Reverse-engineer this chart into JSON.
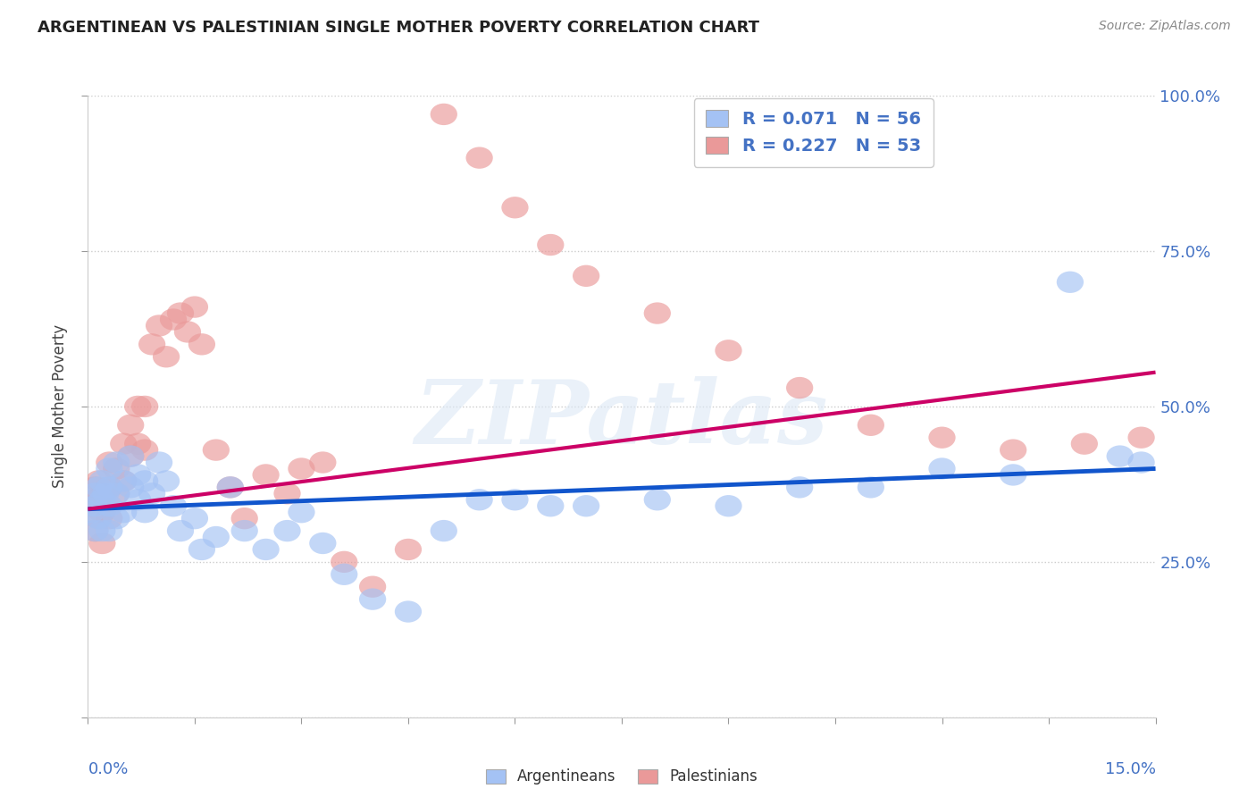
{
  "title": "ARGENTINEAN VS PALESTINIAN SINGLE MOTHER POVERTY CORRELATION CHART",
  "source": "Source: ZipAtlas.com",
  "ylabel": "Single Mother Poverty",
  "xlim": [
    0.0,
    0.15
  ],
  "ylim": [
    0.0,
    1.0
  ],
  "ytick_vals": [
    0.0,
    0.25,
    0.5,
    0.75,
    1.0
  ],
  "ytick_labels": [
    "",
    "25.0%",
    "50.0%",
    "75.0%",
    "100.0%"
  ],
  "legend_blue_label": "R = 0.071   N = 56",
  "legend_pink_label": "R = 0.227   N = 53",
  "legend_bottom_blue": "Argentineans",
  "legend_bottom_pink": "Palestinians",
  "blue_color": "#a4c2f4",
  "pink_color": "#ea9999",
  "blue_fill": "#a4c2f4",
  "pink_fill": "#ea9999",
  "blue_line_color": "#1155cc",
  "pink_line_color": "#cc0066",
  "watermark": "ZIPatlas",
  "blue_line_x": [
    0.0,
    0.15
  ],
  "blue_line_y": [
    0.335,
    0.4
  ],
  "pink_line_x": [
    0.0,
    0.15
  ],
  "pink_line_y": [
    0.335,
    0.555
  ],
  "arg_x": [
    0.0005,
    0.001,
    0.001,
    0.001,
    0.0015,
    0.0015,
    0.002,
    0.002,
    0.002,
    0.0025,
    0.003,
    0.003,
    0.003,
    0.003,
    0.004,
    0.004,
    0.004,
    0.005,
    0.005,
    0.006,
    0.006,
    0.007,
    0.007,
    0.008,
    0.008,
    0.009,
    0.01,
    0.011,
    0.012,
    0.013,
    0.015,
    0.016,
    0.018,
    0.02,
    0.022,
    0.025,
    0.028,
    0.03,
    0.033,
    0.036,
    0.04,
    0.045,
    0.05,
    0.055,
    0.06,
    0.065,
    0.07,
    0.08,
    0.09,
    0.1,
    0.11,
    0.12,
    0.13,
    0.138,
    0.145,
    0.148
  ],
  "arg_y": [
    0.33,
    0.36,
    0.34,
    0.3,
    0.37,
    0.32,
    0.38,
    0.35,
    0.3,
    0.36,
    0.4,
    0.37,
    0.34,
    0.3,
    0.41,
    0.36,
    0.32,
    0.38,
    0.33,
    0.42,
    0.37,
    0.39,
    0.35,
    0.38,
    0.33,
    0.36,
    0.41,
    0.38,
    0.34,
    0.3,
    0.32,
    0.27,
    0.29,
    0.37,
    0.3,
    0.27,
    0.3,
    0.33,
    0.28,
    0.23,
    0.19,
    0.17,
    0.3,
    0.35,
    0.35,
    0.34,
    0.34,
    0.35,
    0.34,
    0.37,
    0.37,
    0.4,
    0.39,
    0.7,
    0.42,
    0.41
  ],
  "pal_x": [
    0.0005,
    0.001,
    0.001,
    0.001,
    0.0015,
    0.0015,
    0.002,
    0.002,
    0.002,
    0.003,
    0.003,
    0.003,
    0.004,
    0.004,
    0.005,
    0.005,
    0.006,
    0.006,
    0.007,
    0.007,
    0.008,
    0.008,
    0.009,
    0.01,
    0.011,
    0.012,
    0.013,
    0.014,
    0.015,
    0.016,
    0.018,
    0.02,
    0.022,
    0.025,
    0.028,
    0.03,
    0.033,
    0.036,
    0.04,
    0.045,
    0.05,
    0.055,
    0.06,
    0.065,
    0.07,
    0.08,
    0.09,
    0.1,
    0.11,
    0.12,
    0.13,
    0.14,
    0.148
  ],
  "pal_y": [
    0.34,
    0.37,
    0.35,
    0.3,
    0.38,
    0.32,
    0.36,
    0.33,
    0.28,
    0.41,
    0.37,
    0.32,
    0.4,
    0.36,
    0.44,
    0.38,
    0.47,
    0.42,
    0.5,
    0.44,
    0.5,
    0.43,
    0.6,
    0.63,
    0.58,
    0.64,
    0.65,
    0.62,
    0.66,
    0.6,
    0.43,
    0.37,
    0.32,
    0.39,
    0.36,
    0.4,
    0.41,
    0.25,
    0.21,
    0.27,
    0.97,
    0.9,
    0.82,
    0.76,
    0.71,
    0.65,
    0.59,
    0.53,
    0.47,
    0.45,
    0.43,
    0.44,
    0.45
  ]
}
